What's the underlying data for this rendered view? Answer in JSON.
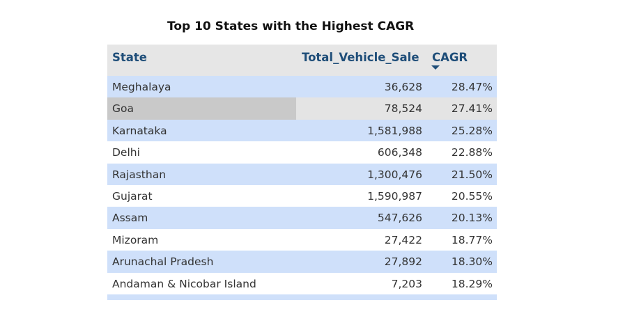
{
  "title": "Top 10 States with the Highest CAGR",
  "columns": {
    "state": "State",
    "total": "Total_Vehicle_Sale",
    "cagr": "CAGR"
  },
  "sort": {
    "column": "CAGR",
    "direction": "descending"
  },
  "rows": [
    {
      "state": "Meghalaya",
      "total": "36,628",
      "cagr": "28.47%"
    },
    {
      "state": "Goa",
      "total": "78,524",
      "cagr": "27.41%"
    },
    {
      "state": "Karnataka",
      "total": "1,581,988",
      "cagr": "25.28%"
    },
    {
      "state": "Delhi",
      "total": "606,348",
      "cagr": "22.88%"
    },
    {
      "state": "Rajasthan",
      "total": "1,300,476",
      "cagr": "21.50%"
    },
    {
      "state": "Gujarat",
      "total": "1,590,987",
      "cagr": "20.55%"
    },
    {
      "state": "Assam",
      "total": "547,626",
      "cagr": "20.13%"
    },
    {
      "state": "Mizoram",
      "total": "27,422",
      "cagr": "18.77%"
    },
    {
      "state": "Arunachal Pradesh",
      "total": "27,892",
      "cagr": "18.30%"
    },
    {
      "state": "Andaman & Nicobar Island",
      "total": "7,203",
      "cagr": "18.29%"
    }
  ],
  "colors": {
    "header_bg": "#e6e6e6",
    "header_text": "#1f4e79",
    "band_blue": "#cfe0fa",
    "hover_row": "#e4e4e4",
    "hover_cell": "#c9c9c9"
  }
}
